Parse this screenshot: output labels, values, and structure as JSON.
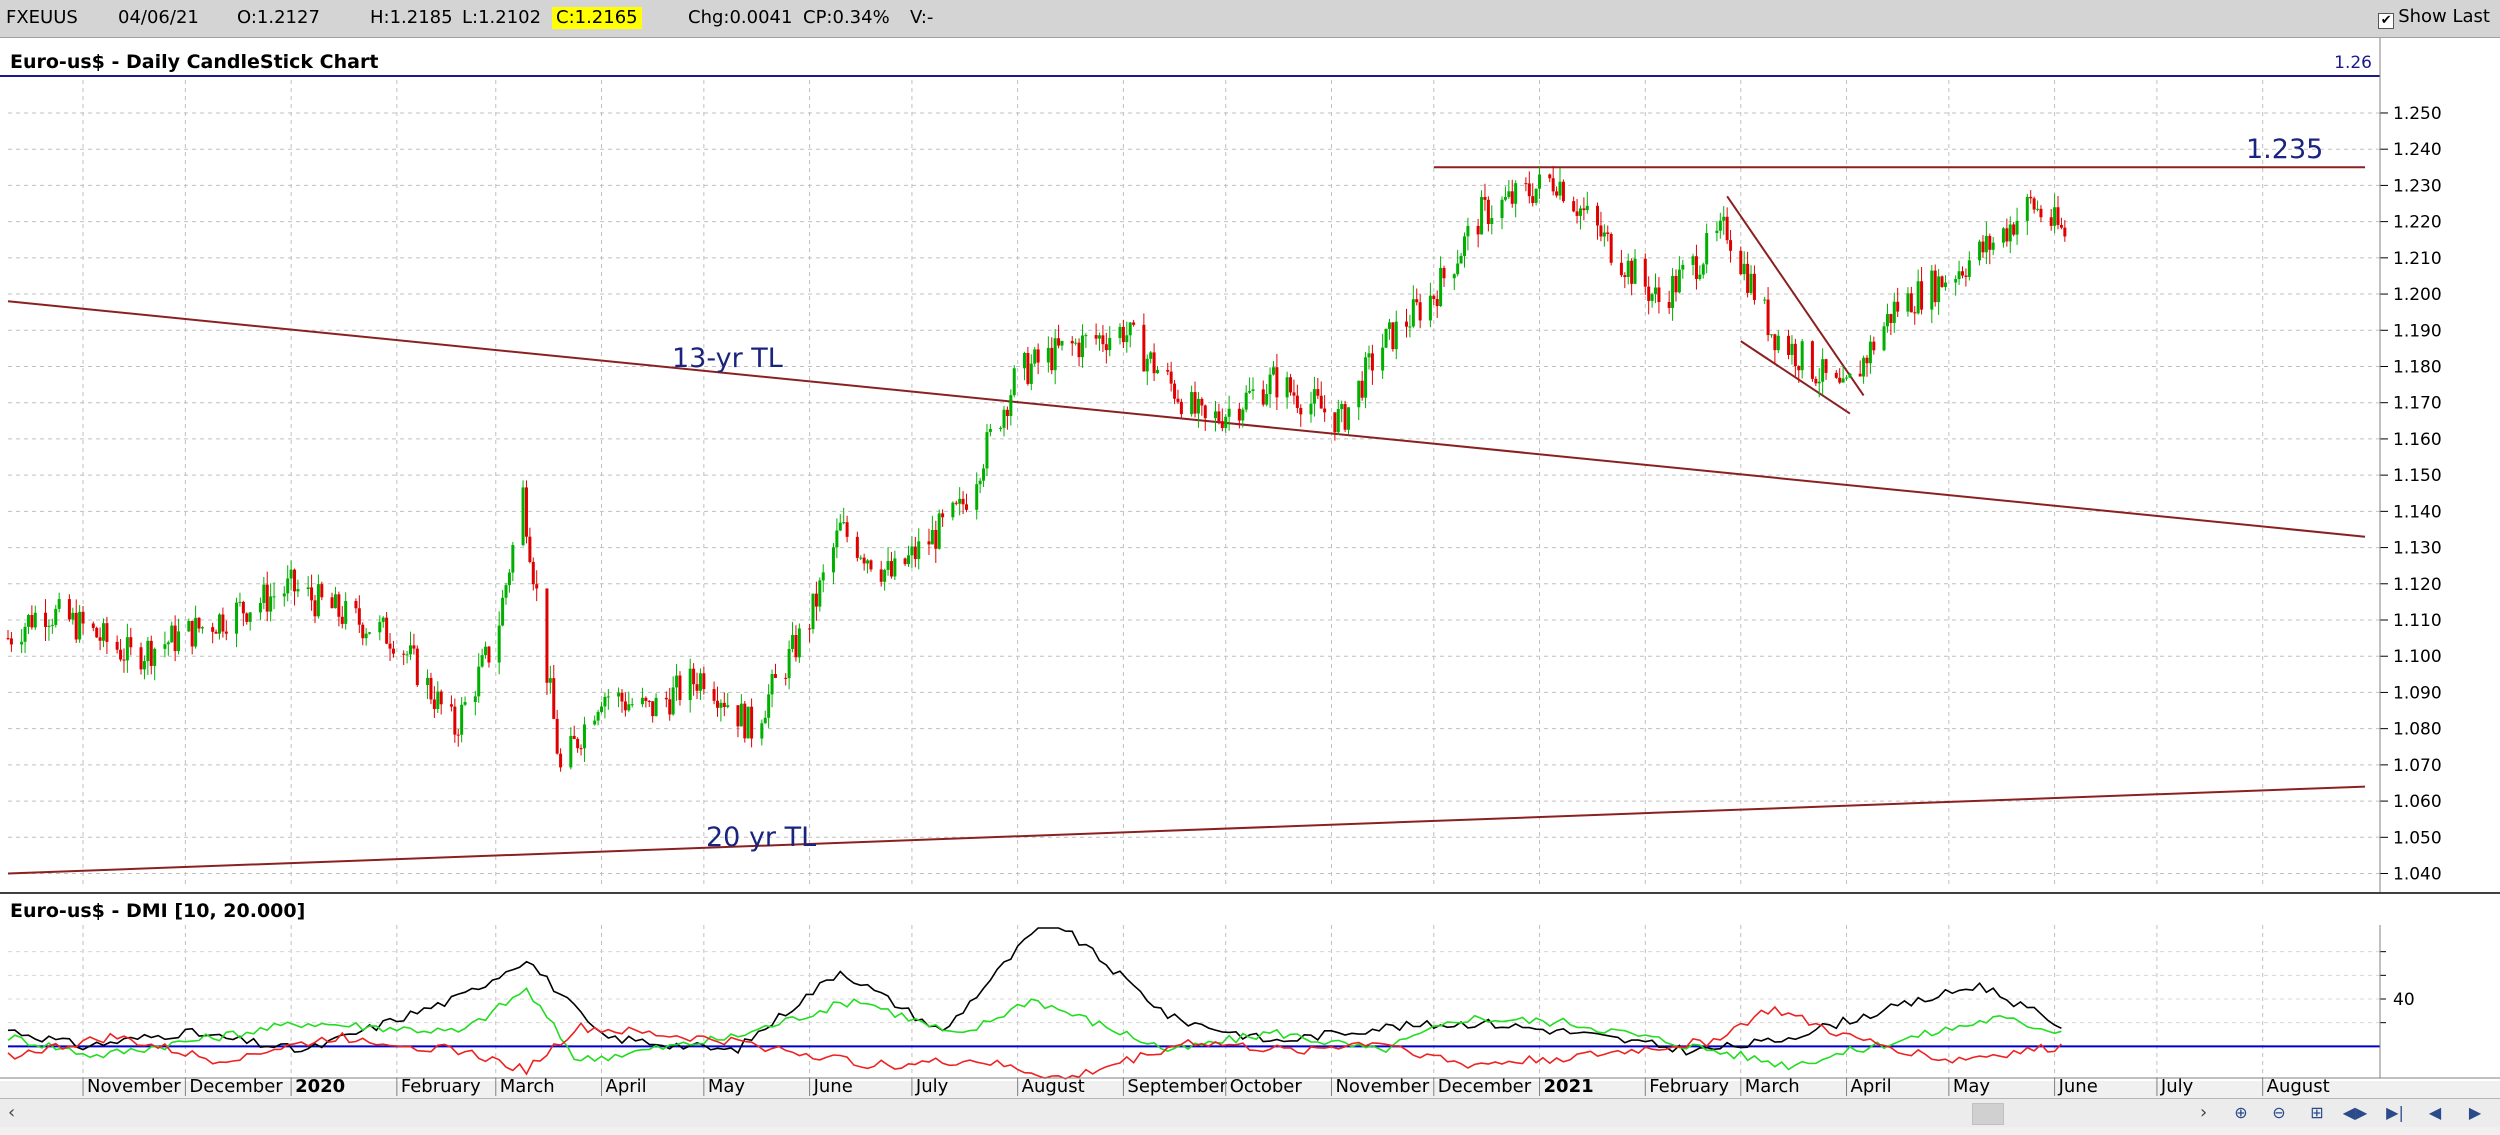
{
  "header": {
    "symbol": "FXEUUS",
    "date": "04/06/21",
    "open": "O:1.2127",
    "high": "H:1.2185",
    "low": "L:1.2102",
    "close": "C:1.2165",
    "change": "Chg:0.0041",
    "change_pct": "CP:0.34%",
    "volume": "V:-",
    "show_last_label": "Show Last"
  },
  "main_panel": {
    "title": "Euro-us$ - Daily CandleStick Chart",
    "last_value": "1.26",
    "annotations": [
      "1.235",
      "13-yr TL",
      "20 yr TL"
    ]
  },
  "dmi_panel": {
    "title": "Euro-us$ - DMI [10, 20.000]",
    "tick_label": "40"
  },
  "x_axis_labels": [
    "November",
    "December",
    "2020",
    "February",
    "March",
    "April",
    "May",
    "June",
    "July",
    "August",
    "September",
    "October",
    "November",
    "December",
    "2021",
    "February",
    "March",
    "April",
    "May",
    "June",
    "July",
    "August"
  ],
  "colors": {
    "up_candle": "#00b000",
    "down_candle": "#e00000",
    "trendline": "#8b2020",
    "annotation": "#1a237e",
    "dmi_adx": "#000000",
    "dmi_plus": "#22dd22",
    "dmi_minus": "#ee2222",
    "dmi_threshold": "#0000cc",
    "close_highlight": "#ffff00"
  },
  "chart_data": [
    {
      "type": "candlestick",
      "title": "Euro-us$ - Daily CandleStick Chart",
      "y_ticks": [
        1.04,
        1.05,
        1.06,
        1.07,
        1.08,
        1.09,
        1.1,
        1.11,
        1.12,
        1.13,
        1.14,
        1.15,
        1.16,
        1.17,
        1.18,
        1.19,
        1.2,
        1.21,
        1.22,
        1.23,
        1.24,
        1.25
      ],
      "ylim": [
        1.036,
        1.258
      ],
      "x_range_months": [
        "2019-10-10",
        "2021-08-31"
      ],
      "grid": true,
      "closes_by_month": [
        {
          "date": "2019-10-10",
          "close": 1.105
        },
        {
          "date": "2019-10-20",
          "close": 1.113
        },
        {
          "date": "2019-11-01",
          "close": 1.108
        },
        {
          "date": "2019-11-15",
          "close": 1.1
        },
        {
          "date": "2019-12-01",
          "close": 1.106
        },
        {
          "date": "2019-12-15",
          "close": 1.112
        },
        {
          "date": "2020-01-01",
          "close": 1.119
        },
        {
          "date": "2020-01-15",
          "close": 1.112
        },
        {
          "date": "2020-02-01",
          "close": 1.105
        },
        {
          "date": "2020-02-18",
          "close": 1.08
        },
        {
          "date": "2020-03-01",
          "close": 1.105
        },
        {
          "date": "2020-03-09",
          "close": 1.145
        },
        {
          "date": "2020-03-20",
          "close": 1.068
        },
        {
          "date": "2020-04-01",
          "close": 1.09
        },
        {
          "date": "2020-04-15",
          "close": 1.085
        },
        {
          "date": "2020-05-01",
          "close": 1.095
        },
        {
          "date": "2020-05-15",
          "close": 1.08
        },
        {
          "date": "2020-06-01",
          "close": 1.11
        },
        {
          "date": "2020-06-10",
          "close": 1.135
        },
        {
          "date": "2020-06-25",
          "close": 1.122
        },
        {
          "date": "2020-07-15",
          "close": 1.14
        },
        {
          "date": "2020-08-01",
          "close": 1.178
        },
        {
          "date": "2020-08-15",
          "close": 1.185
        },
        {
          "date": "2020-09-01",
          "close": 1.19
        },
        {
          "date": "2020-09-25",
          "close": 1.164
        },
        {
          "date": "2020-10-15",
          "close": 1.176
        },
        {
          "date": "2020-11-04",
          "close": 1.165
        },
        {
          "date": "2020-11-15",
          "close": 1.185
        },
        {
          "date": "2020-12-01",
          "close": 1.2
        },
        {
          "date": "2020-12-15",
          "close": 1.222
        },
        {
          "date": "2021-01-06",
          "close": 1.232
        },
        {
          "date": "2021-01-20",
          "close": 1.215
        },
        {
          "date": "2021-02-05",
          "close": 1.198
        },
        {
          "date": "2021-02-25",
          "close": 1.218
        },
        {
          "date": "2021-03-10",
          "close": 1.19
        },
        {
          "date": "2021-03-31",
          "close": 1.172
        },
        {
          "date": "2021-04-15",
          "close": 1.196
        },
        {
          "date": "2021-05-01",
          "close": 1.205
        },
        {
          "date": "2021-05-15",
          "close": 1.215
        },
        {
          "date": "2021-05-25",
          "close": 1.225
        },
        {
          "date": "2021-06-04",
          "close": 1.2165
        }
      ],
      "trendlines": [
        {
          "label": "1.235",
          "from": {
            "date": "2020-12-01",
            "y": 1.235
          },
          "to": {
            "date": "2021-08-31",
            "y": 1.235
          }
        },
        {
          "label": "13-yr TL",
          "from": {
            "date": "2019-10-10",
            "y": 1.198
          },
          "to": {
            "date": "2021-08-31",
            "y": 1.133
          }
        },
        {
          "label": "20 yr TL",
          "from": {
            "date": "2019-10-10",
            "y": 1.04
          },
          "to": {
            "date": "2021-08-31",
            "y": 1.064
          }
        },
        {
          "label": "",
          "from": {
            "date": "2021-02-25",
            "y": 1.227
          },
          "to": {
            "date": "2021-04-06",
            "y": 1.172
          }
        },
        {
          "label": "",
          "from": {
            "date": "2021-03-01",
            "y": 1.187
          },
          "to": {
            "date": "2021-04-02",
            "y": 1.167
          }
        }
      ]
    },
    {
      "type": "line",
      "title": "Euro-us$ - DMI [10, 20.000]",
      "threshold": 20,
      "y_ticks": [
        40
      ],
      "ylim": [
        10,
        70
      ],
      "series": [
        {
          "name": "",
          "color": "#000000",
          "points": [
            [
              "2019-10-10",
              27
            ],
            [
              "2019-11-01",
              20
            ],
            [
              "2019-12-01",
              26
            ],
            [
              "2020-01-05",
              18
            ],
            [
              "2020-02-20",
              41
            ],
            [
              "2020-03-10",
              57
            ],
            [
              "2020-04-01",
              24
            ],
            [
              "2020-05-10",
              18
            ],
            [
              "2020-06-10",
              52
            ],
            [
              "2020-07-10",
              26
            ],
            [
              "2020-08-10",
              75
            ],
            [
              "2020-09-15",
              32
            ],
            [
              "2020-10-15",
              22
            ],
            [
              "2020-11-15",
              28
            ],
            [
              "2020-12-15",
              30
            ],
            [
              "2021-01-10",
              26
            ],
            [
              "2021-02-15",
              18
            ],
            [
              "2021-03-10",
              22
            ],
            [
              "2021-03-30",
              30
            ],
            [
              "2021-05-10",
              46
            ],
            [
              "2021-06-04",
              28
            ]
          ]
        },
        {
          "name": "",
          "color": "#22dd22",
          "points": [
            [
              "2019-10-10",
              24
            ],
            [
              "2019-11-05",
              16
            ],
            [
              "2019-12-10",
              24
            ],
            [
              "2020-01-05",
              30
            ],
            [
              "2020-02-20",
              26
            ],
            [
              "2020-03-10",
              44
            ],
            [
              "2020-03-25",
              14
            ],
            [
              "2020-05-10",
              24
            ],
            [
              "2020-06-15",
              40
            ],
            [
              "2020-07-15",
              24
            ],
            [
              "2020-08-05",
              40
            ],
            [
              "2020-09-15",
              18
            ],
            [
              "2020-10-15",
              26
            ],
            [
              "2020-11-15",
              18
            ],
            [
              "2020-12-10",
              32
            ],
            [
              "2021-01-10",
              30
            ],
            [
              "2021-02-15",
              20
            ],
            [
              "2021-03-15",
              12
            ],
            [
              "2021-04-15",
              22
            ],
            [
              "2021-05-15",
              32
            ],
            [
              "2021-06-04",
              26
            ]
          ]
        },
        {
          "name": "",
          "color": "#ee2222",
          "points": [
            [
              "2019-10-10",
              16
            ],
            [
              "2019-11-10",
              24
            ],
            [
              "2019-12-10",
              14
            ],
            [
              "2020-01-15",
              24
            ],
            [
              "2020-02-20",
              18
            ],
            [
              "2020-03-10",
              10
            ],
            [
              "2020-03-25",
              28
            ],
            [
              "2020-05-10",
              22
            ],
            [
              "2020-06-20",
              12
            ],
            [
              "2020-07-20",
              14
            ],
            [
              "2020-08-15",
              6
            ],
            [
              "2020-09-20",
              22
            ],
            [
              "2020-10-20",
              18
            ],
            [
              "2020-11-15",
              22
            ],
            [
              "2020-12-10",
              12
            ],
            [
              "2021-01-15",
              16
            ],
            [
              "2021-02-20",
              22
            ],
            [
              "2021-03-10",
              36
            ],
            [
              "2021-04-01",
              24
            ],
            [
              "2021-05-01",
              14
            ],
            [
              "2021-06-04",
              20
            ]
          ]
        }
      ]
    }
  ]
}
